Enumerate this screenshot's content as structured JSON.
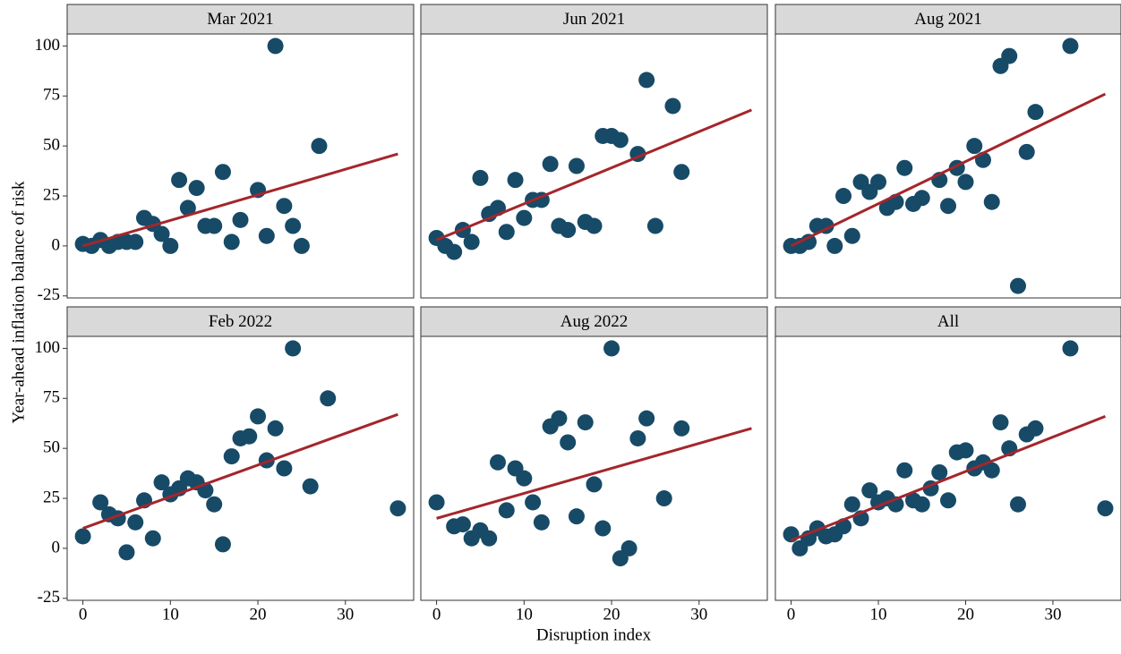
{
  "chart_data": {
    "type": "scatter",
    "xlabel": "Disruption index",
    "ylabel": "Year-ahead inflation balance of risk",
    "xlim": [
      -1.8,
      37.8
    ],
    "ylim": [
      -26,
      106
    ],
    "xticks": [
      0,
      10,
      20,
      30
    ],
    "yticks": [
      -25,
      0,
      25,
      50,
      75,
      100
    ],
    "point_color": "#174a67",
    "fit_color": "#a4262c",
    "panels": [
      {
        "title": "Mar 2021",
        "x": [
          0,
          1,
          2,
          3,
          4,
          5,
          6,
          7,
          8,
          9,
          10,
          11,
          12,
          13,
          14,
          15,
          16,
          17,
          18,
          20,
          21,
          22,
          23,
          24,
          25,
          27
        ],
        "y": [
          1,
          0,
          3,
          0,
          2,
          2,
          2,
          14,
          11,
          6,
          0,
          33,
          19,
          29,
          10,
          10,
          37,
          2,
          13,
          28,
          5,
          100,
          20,
          10,
          0,
          50
        ],
        "fit": {
          "x": [
            0,
            36
          ],
          "y": [
            0,
            46
          ]
        }
      },
      {
        "title": "Jun 2021",
        "x": [
          0,
          1,
          2,
          3,
          4,
          5,
          6,
          7,
          8,
          9,
          10,
          11,
          12,
          13,
          14,
          15,
          16,
          17,
          18,
          19,
          20,
          21,
          23,
          24,
          25,
          27,
          28
        ],
        "y": [
          4,
          0,
          -3,
          8,
          2,
          34,
          16,
          19,
          7,
          33,
          14,
          23,
          23,
          41,
          10,
          8,
          40,
          12,
          10,
          55,
          55,
          53,
          46,
          83,
          10,
          70,
          37
        ],
        "fit": {
          "x": [
            0,
            36
          ],
          "y": [
            3,
            68
          ]
        }
      },
      {
        "title": "Aug 2021",
        "x": [
          0,
          1,
          2,
          3,
          4,
          5,
          6,
          7,
          8,
          9,
          10,
          11,
          12,
          13,
          14,
          15,
          17,
          18,
          19,
          20,
          21,
          22,
          23,
          24,
          25,
          26,
          27,
          28,
          32
        ],
        "y": [
          0,
          0,
          2,
          10,
          10,
          0,
          25,
          5,
          32,
          27,
          32,
          19,
          22,
          39,
          21,
          24,
          33,
          20,
          39,
          32,
          50,
          43,
          22,
          90,
          95,
          -20,
          47,
          67,
          100
        ],
        "fit": {
          "x": [
            0,
            36
          ],
          "y": [
            0,
            76
          ]
        }
      },
      {
        "title": "Feb 2022",
        "x": [
          0,
          2,
          3,
          4,
          5,
          6,
          7,
          8,
          9,
          10,
          11,
          12,
          13,
          14,
          15,
          16,
          17,
          18,
          19,
          20,
          21,
          22,
          23,
          24,
          26,
          28,
          36
        ],
        "y": [
          6,
          23,
          17,
          15,
          -2,
          13,
          24,
          5,
          33,
          27,
          30,
          35,
          33,
          29,
          22,
          2,
          46,
          55,
          56,
          66,
          44,
          60,
          40,
          100,
          31,
          75,
          20
        ],
        "fit": {
          "x": [
            0,
            36
          ],
          "y": [
            10,
            67
          ]
        }
      },
      {
        "title": "Aug 2022",
        "x": [
          0,
          2,
          3,
          4,
          5,
          6,
          7,
          8,
          9,
          10,
          11,
          12,
          13,
          14,
          15,
          16,
          17,
          18,
          19,
          20,
          21,
          22,
          23,
          24,
          26,
          28
        ],
        "y": [
          23,
          11,
          12,
          5,
          9,
          5,
          43,
          19,
          40,
          35,
          23,
          13,
          61,
          65,
          53,
          16,
          63,
          32,
          10,
          100,
          -5,
          0,
          55,
          65,
          25,
          60
        ],
        "fit": {
          "x": [
            0,
            36
          ],
          "y": [
            15,
            60
          ]
        }
      },
      {
        "title": "All",
        "x": [
          0,
          1,
          2,
          3,
          4,
          5,
          6,
          7,
          8,
          9,
          10,
          11,
          12,
          13,
          14,
          15,
          16,
          17,
          18,
          19,
          20,
          21,
          22,
          23,
          24,
          25,
          26,
          27,
          28,
          32,
          36
        ],
        "y": [
          7,
          0,
          5,
          10,
          6,
          7,
          11,
          22,
          15,
          29,
          23,
          25,
          22,
          39,
          24,
          22,
          30,
          38,
          24,
          48,
          49,
          40,
          43,
          39,
          63,
          50,
          22,
          57,
          60,
          100,
          20
        ],
        "fit": {
          "x": [
            0,
            36
          ],
          "y": [
            4,
            66
          ]
        }
      }
    ]
  }
}
